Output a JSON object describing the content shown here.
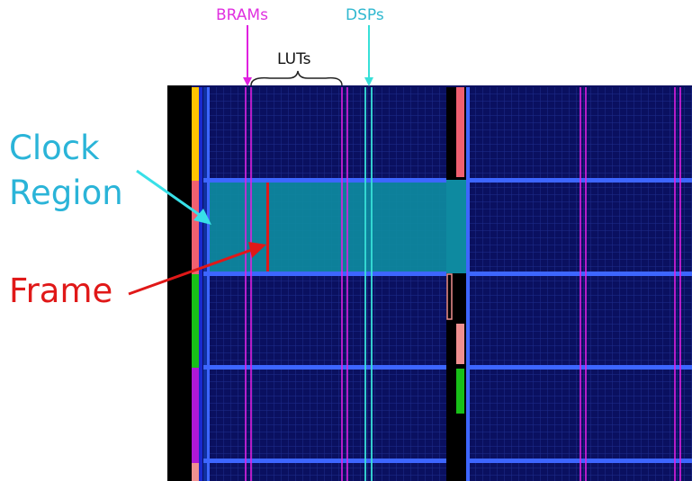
{
  "labels": {
    "brams": "BRAMs",
    "dsps": "DSPs",
    "luts": "LUTs",
    "clock_region_line1": "Clock",
    "clock_region_line2": "Region",
    "frame": "Frame"
  },
  "colors": {
    "fabric_background": "#0a1060",
    "fabric_grid": "#1f2e8e",
    "clock_region_border": "#3d66ff",
    "clock_region_highlight": "#0e8aa0",
    "bram_column": "#e020e0",
    "dsp_column": "#38e0d8",
    "frame_line": "#e01818",
    "label_bram": "#e030e0",
    "label_dsp": "#30b8d0",
    "label_luts": "#111111",
    "label_clock_region": "#2ab4d8",
    "label_frame": "#e01818",
    "io_strip": "#000000",
    "clock_strip_colors": [
      "#ffc400",
      "#f06070",
      "#18c018",
      "#b018d8",
      "#f09090"
    ]
  }
}
